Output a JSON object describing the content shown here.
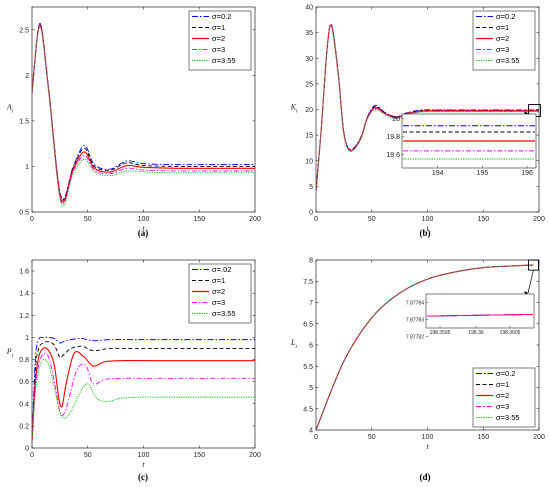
{
  "panels": [
    {
      "id": "a",
      "caption": "(a)",
      "xlabel": "t",
      "ylabel": "A_t",
      "ylabel_main": "A",
      "ylabel_sub": "t",
      "xlim": [
        0,
        200
      ],
      "ylim": [
        0.5,
        2.75
      ],
      "xticks": [
        0,
        50,
        100,
        150,
        200
      ],
      "yticks": [
        0.5,
        1,
        1.5,
        2,
        2.5
      ],
      "legend": [
        "σ=0.2",
        "σ=1",
        "σ=2",
        "σ=3",
        "σ=3.55"
      ]
    },
    {
      "id": "b",
      "caption": "(b)",
      "xlabel": "t",
      "ylabel": "K_t",
      "ylabel_main": "K",
      "ylabel_sub": "t",
      "xlim": [
        0,
        200
      ],
      "ylim": [
        0,
        40
      ],
      "xticks": [
        0,
        50,
        100,
        150,
        200
      ],
      "yticks": [
        0,
        5,
        10,
        15,
        20,
        25,
        30,
        35,
        40
      ],
      "legend": [
        "σ=0.2",
        "σ=1",
        "σ=2",
        "σ=3",
        "σ=3.55"
      ],
      "inset": {
        "xlim": [
          193.2,
          196.2
        ],
        "ylim": [
          19.45,
          20.05
        ],
        "xticks": [
          194,
          195,
          196
        ],
        "yticks": [
          19.6,
          19.8,
          20
        ],
        "values": [
          19.92,
          19.85,
          19.75,
          19.64,
          19.55
        ]
      }
    },
    {
      "id": "c",
      "caption": "(c)",
      "xlabel": "t",
      "ylabel": "P_t",
      "ylabel_main": "P",
      "ylabel_sub": "t",
      "xlim": [
        0,
        200
      ],
      "ylim": [
        0,
        1.7
      ],
      "xticks": [
        0,
        50,
        100,
        150,
        200
      ],
      "yticks": [
        0,
        0.2,
        0.4,
        0.6,
        0.8,
        1,
        1.2,
        1.4,
        1.6
      ],
      "legend": [
        "σ=.02",
        "σ=1",
        "σ=2",
        "σ=3",
        "σ=3.55"
      ],
      "steady": [
        0.98,
        0.9,
        0.79,
        0.63,
        0.46
      ]
    },
    {
      "id": "d",
      "caption": "(d)",
      "xlabel": "t",
      "ylabel": "L_t",
      "ylabel_main": "L",
      "ylabel_sub": "t",
      "xlim": [
        0,
        200
      ],
      "ylim": [
        4,
        8
      ],
      "xticks": [
        0,
        50,
        100,
        150,
        200
      ],
      "yticks": [
        4,
        4.5,
        5,
        5.5,
        6,
        6.5,
        7,
        7.5,
        8
      ],
      "legend": [
        "σ=0.2",
        "σ=1",
        "σ=2",
        "σ=3",
        "σ=3.55"
      ],
      "inset": {
        "xlim": [
          198.3595,
          198.3606
        ],
        "ylim": [
          7.877825,
          7.877845
        ],
        "xticks": [
          "198.3595",
          "198.36",
          "198.3605"
        ],
        "yticks": [
          "7.87784",
          "7.87783",
          "7.87782"
        ],
        "ytick_values": [
          7.87784,
          7.87783,
          7.87782
        ]
      }
    }
  ],
  "series_styles": [
    {
      "color": "#0000ff",
      "dash": "6,2,1.5,2"
    },
    {
      "color": "#000000",
      "dash": "4,2.5"
    },
    {
      "color": "#ff0000",
      "dash": ""
    },
    {
      "color": "#ff00ff",
      "dash": "5,2,1.5,2"
    },
    {
      "color": "#00bb00",
      "dash": "1.2,1.2"
    }
  ],
  "chart_data": [
    {
      "type": "line",
      "title": "",
      "xlabel": "t",
      "ylabel": "A_t",
      "xlim": [
        0,
        200
      ],
      "ylim": [
        0.5,
        2.75
      ],
      "series": [
        {
          "name": "σ=0.2",
          "x": [
            0,
            7,
            15,
            26,
            37,
            47,
            56,
            70,
            85,
            100,
            130,
            160,
            200
          ],
          "y": [
            1.8,
            2.57,
            1.85,
            0.67,
            1.0,
            1.23,
            1.02,
            0.97,
            1.06,
            1.03,
            1.02,
            1.02,
            1.02
          ]
        },
        {
          "name": "σ=1",
          "x": [
            0,
            7,
            15,
            26,
            37,
            47,
            56,
            70,
            85,
            100,
            130,
            160,
            200
          ],
          "y": [
            1.8,
            2.56,
            1.84,
            0.66,
            0.99,
            1.2,
            1.0,
            0.96,
            1.04,
            1.01,
            1.0,
            1.0,
            1.0
          ]
        },
        {
          "name": "σ=2",
          "x": [
            0,
            7,
            15,
            26,
            37,
            47,
            56,
            70,
            85,
            100,
            130,
            160,
            200
          ],
          "y": [
            1.8,
            2.55,
            1.83,
            0.64,
            0.97,
            1.16,
            0.98,
            0.94,
            1.01,
            0.99,
            0.98,
            0.98,
            0.98
          ]
        },
        {
          "name": "σ=3",
          "x": [
            0,
            7,
            15,
            26,
            37,
            47,
            56,
            70,
            85,
            100,
            130,
            160,
            200
          ],
          "y": [
            1.8,
            2.54,
            1.82,
            0.62,
            0.95,
            1.12,
            0.96,
            0.92,
            0.98,
            0.96,
            0.95,
            0.95,
            0.95
          ]
        },
        {
          "name": "σ=3.55",
          "x": [
            0,
            7,
            15,
            26,
            37,
            47,
            56,
            70,
            85,
            100,
            130,
            160,
            200
          ],
          "y": [
            1.8,
            2.53,
            1.81,
            0.6,
            0.92,
            1.08,
            0.94,
            0.9,
            0.95,
            0.94,
            0.93,
            0.93,
            0.93
          ]
        }
      ]
    },
    {
      "type": "line",
      "title": "",
      "xlabel": "t",
      "ylabel": "K_t",
      "xlim": [
        0,
        200
      ],
      "ylim": [
        0,
        40
      ],
      "series": [
        {
          "name": "σ=0.2",
          "x": [
            0,
            5,
            10,
            14,
            20,
            25,
            31,
            40,
            46,
            53,
            62,
            72,
            82,
            95,
            110,
            140,
            170,
            200
          ],
          "y": [
            4,
            17,
            32,
            36.5,
            27,
            15.5,
            12.2,
            14.5,
            18.5,
            20.8,
            19.4,
            18.6,
            19.4,
            19.9,
            19.9,
            19.9,
            19.9,
            19.9
          ]
        },
        {
          "name": "σ=1",
          "x": [
            0,
            5,
            10,
            14,
            20,
            25,
            31,
            40,
            46,
            53,
            62,
            72,
            82,
            95,
            110,
            140,
            170,
            200
          ],
          "y": [
            4,
            17,
            32,
            36.4,
            26.9,
            15.4,
            12.1,
            14.4,
            18.4,
            20.6,
            19.3,
            18.5,
            19.3,
            19.8,
            19.85,
            19.85,
            19.85,
            19.85
          ]
        },
        {
          "name": "σ=2",
          "x": [
            0,
            5,
            10,
            14,
            20,
            25,
            31,
            40,
            46,
            53,
            62,
            72,
            82,
            95,
            110,
            140,
            170,
            200
          ],
          "y": [
            4,
            17,
            32,
            36.3,
            26.8,
            15.3,
            12.0,
            14.3,
            18.3,
            20.4,
            19.2,
            18.4,
            19.2,
            19.7,
            19.75,
            19.75,
            19.75,
            19.75
          ]
        },
        {
          "name": "σ=3",
          "x": [
            0,
            5,
            10,
            14,
            20,
            25,
            31,
            40,
            46,
            53,
            62,
            72,
            82,
            95,
            110,
            140,
            170,
            200
          ],
          "y": [
            4,
            17,
            32,
            36.2,
            26.7,
            15.2,
            11.9,
            14.2,
            18.2,
            20.2,
            19.1,
            18.3,
            19.1,
            19.6,
            19.64,
            19.64,
            19.64,
            19.64
          ]
        },
        {
          "name": "σ=3.55",
          "x": [
            0,
            5,
            10,
            14,
            20,
            25,
            31,
            40,
            46,
            53,
            62,
            72,
            82,
            95,
            110,
            140,
            170,
            200
          ],
          "y": [
            4,
            17,
            32,
            36.1,
            26.6,
            15.1,
            11.8,
            14.1,
            18.1,
            20.0,
            19.0,
            18.2,
            19.0,
            19.5,
            19.55,
            19.55,
            19.55,
            19.55
          ]
        }
      ]
    },
    {
      "type": "line",
      "title": "",
      "xlabel": "t",
      "ylabel": "P_t",
      "xlim": [
        0,
        200
      ],
      "ylim": [
        0,
        1.7
      ],
      "series": [
        {
          "name": "σ=.02",
          "x": [
            0,
            3,
            6,
            10,
            15,
            20,
            25,
            28,
            35,
            45,
            55,
            70,
            90,
            120,
            200
          ],
          "y": [
            0.05,
            0.8,
            0.98,
            1.0,
            1.0,
            0.99,
            0.95,
            0.96,
            0.98,
            0.99,
            0.97,
            0.98,
            0.98,
            0.98,
            0.98
          ]
        },
        {
          "name": "σ=1",
          "x": [
            0,
            3,
            6,
            10,
            15,
            20,
            25,
            28,
            35,
            45,
            55,
            70,
            90,
            120,
            200
          ],
          "y": [
            0.05,
            0.7,
            0.9,
            0.95,
            0.96,
            0.93,
            0.82,
            0.84,
            0.9,
            0.92,
            0.88,
            0.9,
            0.9,
            0.9,
            0.9
          ]
        },
        {
          "name": "σ=2",
          "x": [
            0,
            3,
            6,
            10,
            15,
            20,
            24,
            27,
            31,
            38,
            47,
            55,
            65,
            80,
            110,
            200
          ],
          "y": [
            0.05,
            0.6,
            0.82,
            0.9,
            0.88,
            0.75,
            0.45,
            0.38,
            0.6,
            0.86,
            0.82,
            0.74,
            0.78,
            0.79,
            0.79,
            0.79
          ]
        },
        {
          "name": "σ=3",
          "x": [
            0,
            3,
            6,
            10,
            15,
            20,
            25,
            28,
            32,
            40,
            48,
            55,
            65,
            80,
            110,
            200
          ],
          "y": [
            0.05,
            0.55,
            0.75,
            0.85,
            0.82,
            0.6,
            0.33,
            0.3,
            0.4,
            0.7,
            0.75,
            0.58,
            0.62,
            0.63,
            0.63,
            0.63
          ]
        },
        {
          "name": "σ=3.55",
          "x": [
            0,
            3,
            6,
            10,
            15,
            20,
            25,
            29,
            35,
            43,
            50,
            58,
            68,
            80,
            100,
            130,
            200
          ],
          "y": [
            0.05,
            0.5,
            0.7,
            0.8,
            0.75,
            0.55,
            0.32,
            0.27,
            0.33,
            0.5,
            0.58,
            0.45,
            0.42,
            0.45,
            0.46,
            0.46,
            0.46
          ]
        }
      ]
    },
    {
      "type": "line",
      "title": "",
      "xlabel": "t",
      "ylabel": "L_t",
      "xlim": [
        0,
        200
      ],
      "ylim": [
        4,
        8
      ],
      "series": [
        {
          "name": "σ=0.2",
          "x": [
            0,
            25,
            50,
            75,
            100,
            125,
            150,
            175,
            195
          ],
          "y": [
            4.0,
            5.62,
            6.64,
            7.22,
            7.55,
            7.72,
            7.82,
            7.86,
            7.88
          ]
        },
        {
          "name": "σ=1",
          "x": [
            0,
            25,
            50,
            75,
            100,
            125,
            150,
            175,
            195
          ],
          "y": [
            4.0,
            5.62,
            6.64,
            7.22,
            7.55,
            7.72,
            7.82,
            7.86,
            7.88
          ]
        },
        {
          "name": "σ=2",
          "x": [
            0,
            25,
            50,
            75,
            100,
            125,
            150,
            175,
            195
          ],
          "y": [
            4.0,
            5.62,
            6.64,
            7.22,
            7.55,
            7.72,
            7.82,
            7.86,
            7.88
          ]
        },
        {
          "name": "σ=3",
          "x": [
            0,
            25,
            50,
            75,
            100,
            125,
            150,
            175,
            195
          ],
          "y": [
            4.0,
            5.62,
            6.64,
            7.22,
            7.55,
            7.72,
            7.82,
            7.86,
            7.88
          ]
        },
        {
          "name": "σ=3.55",
          "x": [
            0,
            25,
            50,
            75,
            100,
            125,
            150,
            175,
            195
          ],
          "y": [
            4.0,
            5.62,
            6.64,
            7.22,
            7.55,
            7.72,
            7.82,
            7.86,
            7.88
          ]
        }
      ]
    }
  ]
}
